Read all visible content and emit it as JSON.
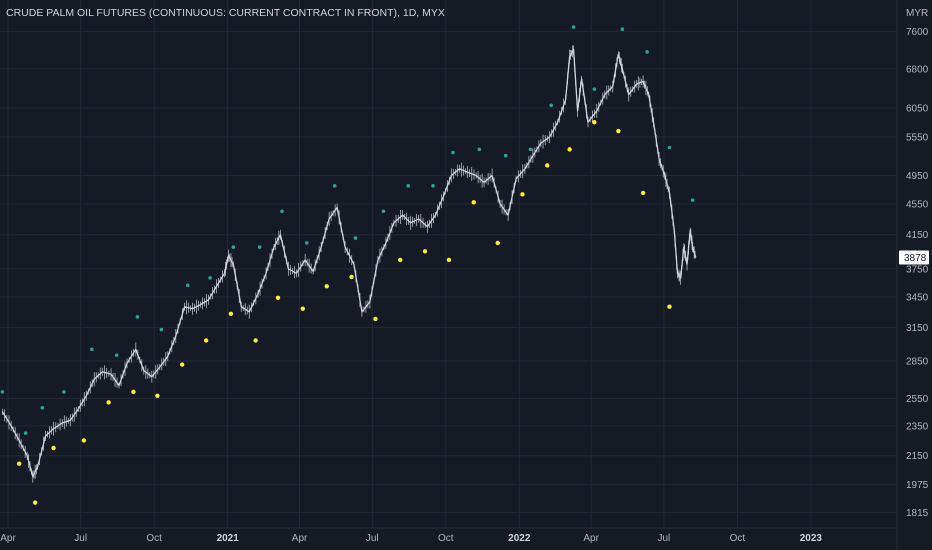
{
  "chart_data": {
    "type": "line",
    "title": "CRUDE PALM OIL FUTURES (CONTINUOUS: CURRENT CONTRACT IN FRONT), 1D, MYX",
    "currency": "MYR",
    "last_price_label": "3878",
    "y_ticks": [
      1815,
      1975,
      2150,
      2350,
      2550,
      2850,
      3150,
      3450,
      3750,
      4150,
      4550,
      4950,
      5550,
      6050,
      6800,
      7600
    ],
    "x_ticks": [
      {
        "label": "Apr",
        "date": "2020-04-01",
        "bold": false
      },
      {
        "label": "Jul",
        "date": "2020-07-01",
        "bold": false
      },
      {
        "label": "Oct",
        "date": "2020-10-01",
        "bold": false
      },
      {
        "label": "2021",
        "date": "2021-01-01",
        "bold": true
      },
      {
        "label": "Apr",
        "date": "2021-04-01",
        "bold": false
      },
      {
        "label": "Jul",
        "date": "2021-07-01",
        "bold": false
      },
      {
        "label": "Oct",
        "date": "2021-10-01",
        "bold": false
      },
      {
        "label": "2022",
        "date": "2022-01-01",
        "bold": true
      },
      {
        "label": "Apr",
        "date": "2022-04-01",
        "bold": false
      },
      {
        "label": "Jul",
        "date": "2022-07-01",
        "bold": false
      },
      {
        "label": "Oct",
        "date": "2022-10-01",
        "bold": false
      },
      {
        "label": "2023",
        "date": "2023-01-01",
        "bold": true
      }
    ],
    "log_scale": true,
    "grid": true,
    "x_range": [
      "2020-04-01",
      "2023-03-01"
    ],
    "y_range": [
      1760,
      8100
    ],
    "series": [
      {
        "color": "#d1d4dc",
        "points": [
          [
            "2020-03-25",
            2450
          ],
          [
            "2020-04-05",
            2350
          ],
          [
            "2020-04-15",
            2250
          ],
          [
            "2020-04-25",
            2150
          ],
          [
            "2020-05-02",
            2020
          ],
          [
            "2020-05-08",
            2080
          ],
          [
            "2020-05-18",
            2280
          ],
          [
            "2020-05-28",
            2330
          ],
          [
            "2020-06-08",
            2370
          ],
          [
            "2020-06-18",
            2390
          ],
          [
            "2020-06-28",
            2470
          ],
          [
            "2020-07-08",
            2570
          ],
          [
            "2020-07-18",
            2700
          ],
          [
            "2020-07-28",
            2760
          ],
          [
            "2020-08-08",
            2740
          ],
          [
            "2020-08-18",
            2650
          ],
          [
            "2020-08-28",
            2830
          ],
          [
            "2020-09-08",
            2950
          ],
          [
            "2020-09-18",
            2770
          ],
          [
            "2020-09-28",
            2720
          ],
          [
            "2020-10-08",
            2800
          ],
          [
            "2020-10-18",
            2890
          ],
          [
            "2020-10-28",
            3070
          ],
          [
            "2020-11-08",
            3350
          ],
          [
            "2020-11-18",
            3330
          ],
          [
            "2020-11-28",
            3370
          ],
          [
            "2020-12-08",
            3420
          ],
          [
            "2020-12-18",
            3560
          ],
          [
            "2020-12-28",
            3700
          ],
          [
            "2021-01-02",
            3900
          ],
          [
            "2021-01-08",
            3800
          ],
          [
            "2021-01-18",
            3350
          ],
          [
            "2021-01-28",
            3300
          ],
          [
            "2021-02-08",
            3480
          ],
          [
            "2021-02-18",
            3700
          ],
          [
            "2021-02-28",
            4000
          ],
          [
            "2021-03-08",
            4150
          ],
          [
            "2021-03-18",
            3750
          ],
          [
            "2021-03-28",
            3700
          ],
          [
            "2021-04-08",
            3850
          ],
          [
            "2021-04-18",
            3720
          ],
          [
            "2021-04-28",
            4000
          ],
          [
            "2021-05-08",
            4350
          ],
          [
            "2021-05-18",
            4500
          ],
          [
            "2021-05-28",
            4000
          ],
          [
            "2021-06-08",
            3800
          ],
          [
            "2021-06-18",
            3300
          ],
          [
            "2021-06-28",
            3400
          ],
          [
            "2021-07-08",
            3850
          ],
          [
            "2021-07-18",
            4050
          ],
          [
            "2021-07-28",
            4300
          ],
          [
            "2021-08-08",
            4400
          ],
          [
            "2021-08-18",
            4300
          ],
          [
            "2021-08-28",
            4350
          ],
          [
            "2021-09-08",
            4250
          ],
          [
            "2021-09-18",
            4400
          ],
          [
            "2021-09-28",
            4650
          ],
          [
            "2021-10-08",
            4950
          ],
          [
            "2021-10-18",
            5050
          ],
          [
            "2021-10-28",
            5000
          ],
          [
            "2021-11-08",
            4950
          ],
          [
            "2021-11-18",
            4850
          ],
          [
            "2021-11-28",
            4950
          ],
          [
            "2021-12-08",
            4550
          ],
          [
            "2021-12-18",
            4400
          ],
          [
            "2021-12-28",
            4900
          ],
          [
            "2022-01-08",
            5050
          ],
          [
            "2022-01-18",
            5250
          ],
          [
            "2022-01-28",
            5450
          ],
          [
            "2022-02-08",
            5550
          ],
          [
            "2022-02-18",
            5800
          ],
          [
            "2022-02-28",
            6200
          ],
          [
            "2022-03-05",
            7050
          ],
          [
            "2022-03-10",
            7200
          ],
          [
            "2022-03-15",
            6000
          ],
          [
            "2022-03-20",
            6600
          ],
          [
            "2022-03-28",
            5800
          ],
          [
            "2022-04-08",
            6000
          ],
          [
            "2022-04-18",
            6300
          ],
          [
            "2022-04-28",
            6450
          ],
          [
            "2022-05-05",
            7100
          ],
          [
            "2022-05-10",
            6800
          ],
          [
            "2022-05-18",
            6300
          ],
          [
            "2022-05-28",
            6500
          ],
          [
            "2022-06-05",
            6550
          ],
          [
            "2022-06-12",
            6300
          ],
          [
            "2022-06-18",
            5800
          ],
          [
            "2022-06-25",
            5200
          ],
          [
            "2022-07-02",
            4950
          ],
          [
            "2022-07-08",
            4700
          ],
          [
            "2022-07-14",
            4200
          ],
          [
            "2022-07-18",
            3700
          ],
          [
            "2022-07-22",
            3650
          ],
          [
            "2022-07-26",
            4000
          ],
          [
            "2022-07-30",
            3800
          ],
          [
            "2022-08-03",
            4200
          ],
          [
            "2022-08-06",
            4000
          ],
          [
            "2022-08-10",
            3878
          ]
        ]
      }
    ],
    "markers_above": [
      [
        "2020-03-25",
        2600
      ],
      [
        "2020-04-23",
        2300
      ],
      [
        "2020-05-14",
        2480
      ],
      [
        "2020-06-10",
        2600
      ],
      [
        "2020-07-15",
        2950
      ],
      [
        "2020-08-15",
        2900
      ],
      [
        "2020-09-10",
        3250
      ],
      [
        "2020-10-10",
        3130
      ],
      [
        "2020-11-12",
        3570
      ],
      [
        "2020-12-10",
        3650
      ],
      [
        "2021-01-08",
        4000
      ],
      [
        "2021-02-10",
        4000
      ],
      [
        "2021-03-10",
        4450
      ],
      [
        "2021-04-10",
        4050
      ],
      [
        "2021-05-15",
        4800
      ],
      [
        "2021-06-10",
        4110
      ],
      [
        "2021-07-15",
        4450
      ],
      [
        "2021-08-15",
        4800
      ],
      [
        "2021-09-15",
        4800
      ],
      [
        "2021-10-10",
        5300
      ],
      [
        "2021-11-12",
        5350
      ],
      [
        "2021-12-15",
        5250
      ],
      [
        "2022-01-15",
        5350
      ],
      [
        "2022-02-10",
        6100
      ],
      [
        "2022-03-10",
        7700
      ],
      [
        "2022-04-05",
        6400
      ],
      [
        "2022-05-10",
        7650
      ],
      [
        "2022-06-10",
        7150
      ],
      [
        "2022-07-08",
        5380
      ],
      [
        "2022-08-06",
        4600
      ]
    ],
    "markers_below": [
      [
        "2020-04-15",
        2100
      ],
      [
        "2020-05-05",
        1870
      ],
      [
        "2020-05-28",
        2200
      ],
      [
        "2020-07-05",
        2250
      ],
      [
        "2020-08-05",
        2520
      ],
      [
        "2020-09-05",
        2600
      ],
      [
        "2020-10-05",
        2570
      ],
      [
        "2020-11-05",
        2820
      ],
      [
        "2020-12-05",
        3030
      ],
      [
        "2021-01-05",
        3280
      ],
      [
        "2021-02-05",
        3030
      ],
      [
        "2021-03-05",
        3440
      ],
      [
        "2021-04-05",
        3330
      ],
      [
        "2021-05-05",
        3560
      ],
      [
        "2021-06-05",
        3660
      ],
      [
        "2021-07-05",
        3230
      ],
      [
        "2021-08-05",
        3850
      ],
      [
        "2021-09-05",
        3950
      ],
      [
        "2021-10-05",
        3850
      ],
      [
        "2021-11-05",
        4570
      ],
      [
        "2021-12-05",
        4050
      ],
      [
        "2022-01-05",
        4680
      ],
      [
        "2022-02-05",
        5100
      ],
      [
        "2022-03-05",
        5350
      ],
      [
        "2022-04-05",
        5800
      ],
      [
        "2022-05-05",
        5650
      ],
      [
        "2022-06-05",
        4700
      ],
      [
        "2022-07-08",
        3350
      ]
    ],
    "colors": {
      "background": "#161a25",
      "grid": "#242938",
      "line": "#d1d4dc",
      "marker_above": "#26a69a",
      "marker_below": "#ffeb3b",
      "price_tag": "#ffffff"
    }
  }
}
